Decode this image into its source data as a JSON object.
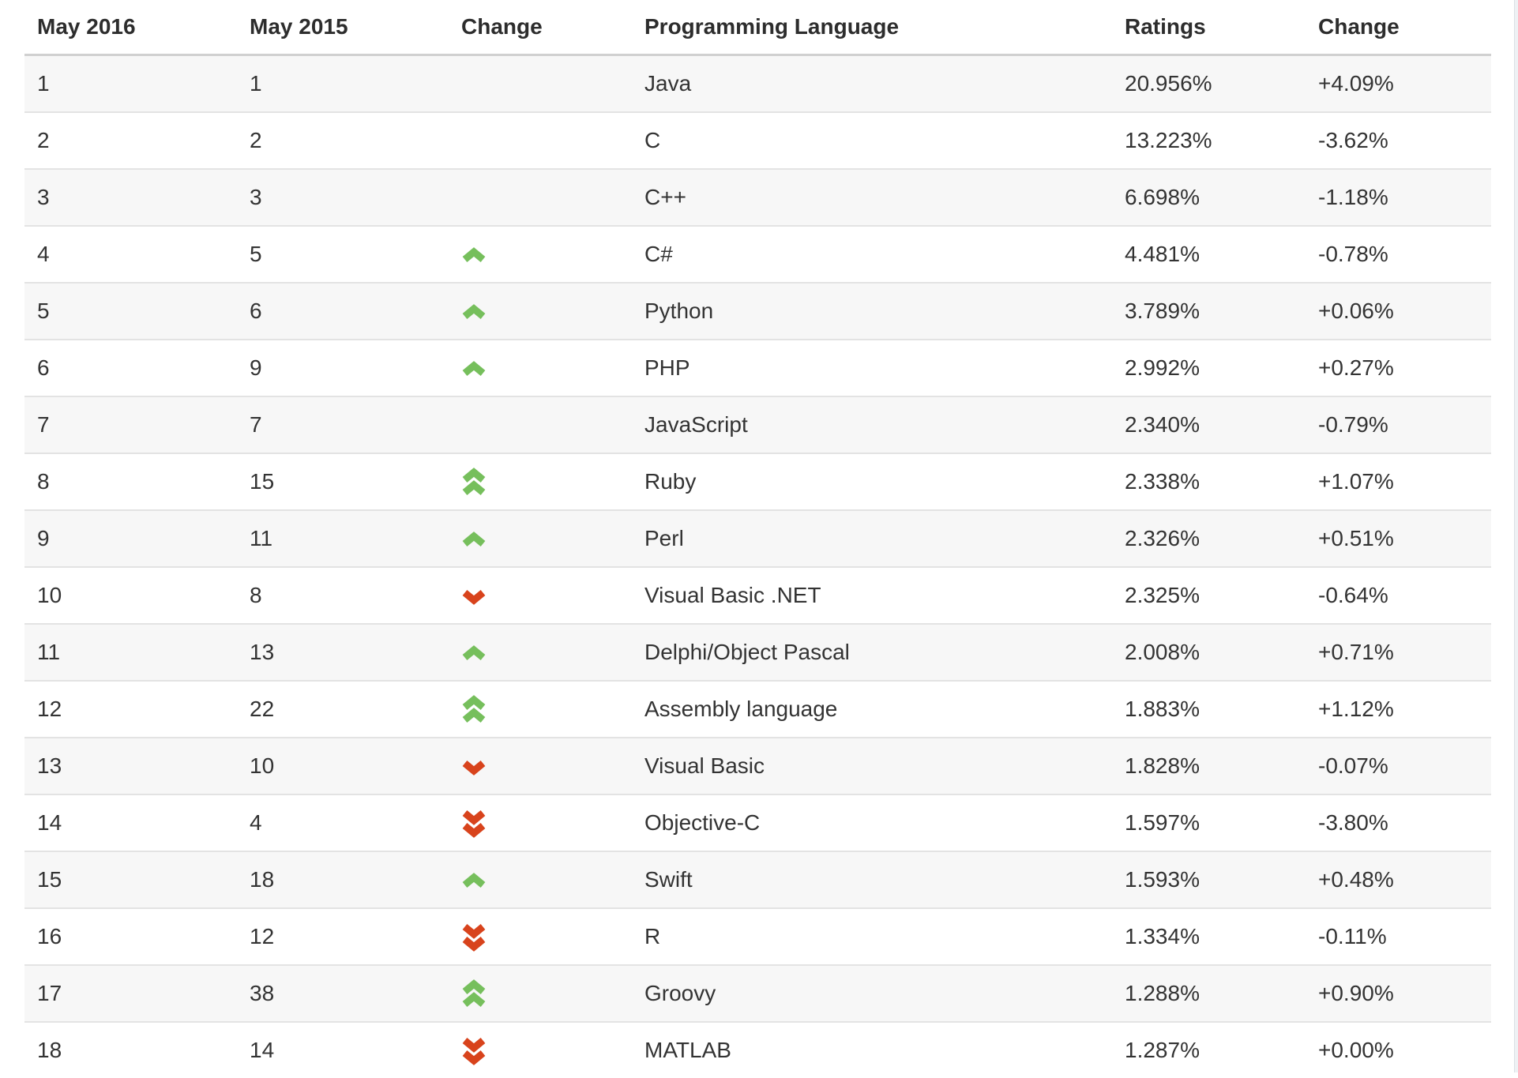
{
  "page": {
    "background": "#ffffff",
    "stripe_color": "#f7f7f7",
    "row_border_color": "#e3e3e3",
    "header_border_color": "#d0d0d0",
    "text_color": "#333333"
  },
  "icons": {
    "up": {
      "name": "rank-up-icon",
      "glyph": "chevron-up",
      "color": "#76bf5c"
    },
    "up2": {
      "name": "rank-up-double-icon",
      "glyph": "double-chevron-up",
      "color": "#76bf5c"
    },
    "down": {
      "name": "rank-down-icon",
      "glyph": "chevron-down",
      "color": "#d8431c"
    },
    "down2": {
      "name": "rank-down-double-icon",
      "glyph": "double-chevron-down",
      "color": "#d8431c"
    }
  },
  "chart_data": {
    "type": "table",
    "title": "Programming language ranking: May 2016 vs May 2015",
    "columns": [
      "May 2016",
      "May 2015",
      "Change",
      "Programming Language",
      "Ratings",
      "Change"
    ],
    "rows": [
      {
        "may2016": "1",
        "may2015": "1",
        "position_change": "steady",
        "language": "Java",
        "ratings": "20.956%",
        "change": "+4.09%"
      },
      {
        "may2016": "2",
        "may2015": "2",
        "position_change": "steady",
        "language": "C",
        "ratings": "13.223%",
        "change": "-3.62%"
      },
      {
        "may2016": "3",
        "may2015": "3",
        "position_change": "steady",
        "language": "C++",
        "ratings": "6.698%",
        "change": "-1.18%"
      },
      {
        "may2016": "4",
        "may2015": "5",
        "position_change": "up",
        "language": "C#",
        "ratings": "4.481%",
        "change": "-0.78%"
      },
      {
        "may2016": "5",
        "may2015": "6",
        "position_change": "up",
        "language": "Python",
        "ratings": "3.789%",
        "change": "+0.06%"
      },
      {
        "may2016": "6",
        "may2015": "9",
        "position_change": "up",
        "language": "PHP",
        "ratings": "2.992%",
        "change": "+0.27%"
      },
      {
        "may2016": "7",
        "may2015": "7",
        "position_change": "steady",
        "language": "JavaScript",
        "ratings": "2.340%",
        "change": "-0.79%"
      },
      {
        "may2016": "8",
        "may2015": "15",
        "position_change": "up2",
        "language": "Ruby",
        "ratings": "2.338%",
        "change": "+1.07%"
      },
      {
        "may2016": "9",
        "may2015": "11",
        "position_change": "up",
        "language": "Perl",
        "ratings": "2.326%",
        "change": "+0.51%"
      },
      {
        "may2016": "10",
        "may2015": "8",
        "position_change": "down",
        "language": "Visual Basic .NET",
        "ratings": "2.325%",
        "change": "-0.64%"
      },
      {
        "may2016": "11",
        "may2015": "13",
        "position_change": "up",
        "language": "Delphi/Object Pascal",
        "ratings": "2.008%",
        "change": "+0.71%"
      },
      {
        "may2016": "12",
        "may2015": "22",
        "position_change": "up2",
        "language": "Assembly language",
        "ratings": "1.883%",
        "change": "+1.12%"
      },
      {
        "may2016": "13",
        "may2015": "10",
        "position_change": "down",
        "language": "Visual Basic",
        "ratings": "1.828%",
        "change": "-0.07%"
      },
      {
        "may2016": "14",
        "may2015": "4",
        "position_change": "down2",
        "language": "Objective-C",
        "ratings": "1.597%",
        "change": "-3.80%"
      },
      {
        "may2016": "15",
        "may2015": "18",
        "position_change": "up",
        "language": "Swift",
        "ratings": "1.593%",
        "change": "+0.48%"
      },
      {
        "may2016": "16",
        "may2015": "12",
        "position_change": "down2",
        "language": "R",
        "ratings": "1.334%",
        "change": "-0.11%"
      },
      {
        "may2016": "17",
        "may2015": "38",
        "position_change": "up2",
        "language": "Groovy",
        "ratings": "1.288%",
        "change": "+0.90%"
      },
      {
        "may2016": "18",
        "may2015": "14",
        "position_change": "down2",
        "language": "MATLAB",
        "ratings": "1.287%",
        "change": "+0.00%"
      }
    ]
  }
}
